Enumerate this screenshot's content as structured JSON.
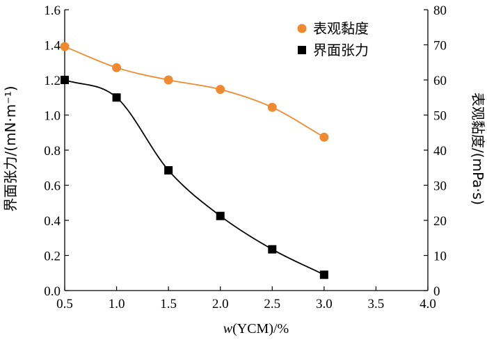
{
  "chart_data": {
    "type": "line",
    "x_label": {
      "prefix": "",
      "italic": "w",
      "rest": "(YCM)/%"
    },
    "y_left_label": "界面张力/(mN·m⁻¹)",
    "y_right_label": "表观黏度/(mPa·s)",
    "x_range": [
      0.5,
      4.0
    ],
    "x_ticks": [
      "0.5",
      "1.0",
      "1.5",
      "2.0",
      "2.5",
      "3.0",
      "3.5",
      "4.0"
    ],
    "y_left_range": [
      0,
      1.6
    ],
    "y_left_ticks": [
      "0.0",
      "0.2",
      "0.4",
      "0.6",
      "0.8",
      "1.0",
      "1.2",
      "1.4",
      "1.6"
    ],
    "y_right_range": [
      0,
      80
    ],
    "y_right_ticks": [
      "0",
      "10",
      "20",
      "30",
      "40",
      "50",
      "60",
      "70",
      "80"
    ],
    "legend_position": "top-right",
    "series": [
      {
        "name": "表观黏度",
        "axis": "right",
        "marker": "circle",
        "color": "#f08a30",
        "x": [
          0.5,
          1.0,
          1.5,
          2.0,
          2.5,
          3.0
        ],
        "y": [
          69.5,
          63.5,
          60.0,
          57.3,
          52.2,
          43.7
        ]
      },
      {
        "name": "界面张力",
        "axis": "left",
        "marker": "square",
        "color": "#000000",
        "x": [
          0.5,
          1.0,
          1.5,
          2.0,
          2.5,
          3.0
        ],
        "y": [
          1.2,
          1.1,
          0.685,
          0.425,
          0.235,
          0.09
        ]
      }
    ]
  }
}
